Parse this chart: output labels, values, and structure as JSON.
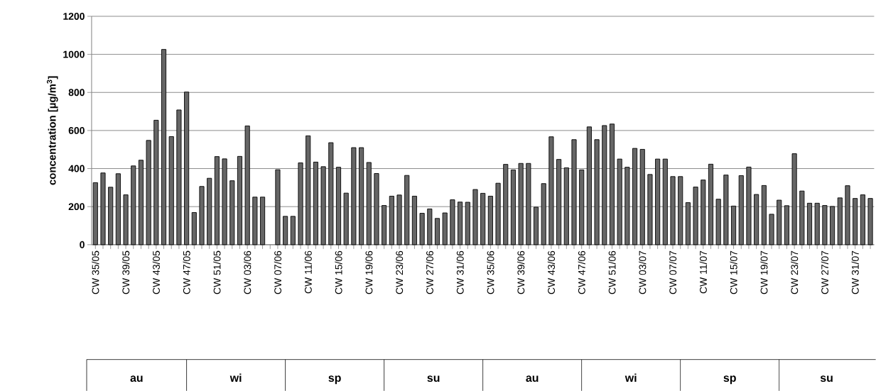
{
  "chart_data": {
    "type": "bar",
    "ylabel": "concentration [µg/m$^{3}$]",
    "categories": [
      "CW 35/05",
      null,
      null,
      null,
      "CW 39/05",
      null,
      null,
      null,
      "CW 43/05",
      null,
      null,
      null,
      "CW 47/05",
      null,
      null,
      null,
      "CW 51/05",
      null,
      null,
      null,
      "CW 03/06",
      null,
      null,
      null,
      "CW 07/06",
      null,
      null,
      null,
      "CW 11/06",
      null,
      null,
      null,
      "CW 15/06",
      null,
      null,
      null,
      "CW 19/06",
      null,
      null,
      null,
      "CW 23/06",
      null,
      null,
      null,
      "CW 27/06",
      null,
      null,
      null,
      "CW 31/06",
      null,
      null,
      null,
      "CW 35/06",
      null,
      null,
      null,
      "CW 39/06",
      null,
      null,
      null,
      "CW 43/06",
      null,
      null,
      null,
      "CW 47/06",
      null,
      null,
      null,
      "CW 51/06",
      null,
      null,
      null,
      "CW 03/07",
      null,
      null,
      null,
      "CW 07/07",
      null,
      null,
      null,
      "CW 11/07",
      null,
      null,
      null,
      "CW 15/07",
      null,
      null,
      null,
      "CW 19/07",
      null,
      null,
      null,
      "CW 23/07",
      null,
      null,
      null,
      "CW 27/07",
      null,
      null,
      null,
      "CW 31/07",
      null,
      null
    ],
    "values": [
      326,
      377,
      302,
      373,
      262,
      414,
      444,
      548,
      654,
      1026,
      568,
      708,
      802,
      169,
      306,
      349,
      463,
      451,
      336,
      464,
      624,
      250,
      250,
      null,
      394,
      149,
      149,
      430,
      572,
      434,
      410,
      536,
      407,
      271,
      510,
      510,
      432,
      374,
      206,
      255,
      261,
      364,
      255,
      165,
      188,
      138,
      167,
      236,
      224,
      223,
      290,
      270,
      255,
      323,
      422,
      393,
      427,
      427,
      197,
      321,
      567,
      448,
      404,
      552,
      393,
      619,
      552,
      626,
      634,
      450,
      407,
      506,
      501,
      369,
      450,
      450,
      358,
      358,
      221,
      303,
      340,
      423,
      239,
      366,
      203,
      363,
      408,
      264,
      311,
      160,
      234,
      205,
      478,
      282,
      218,
      218,
      206,
      201,
      246,
      310,
      243,
      262,
      243
    ],
    "color": "#666666",
    "ylim": [
      0,
      1200
    ],
    "yticks": [
      0,
      200,
      400,
      600,
      800,
      1000,
      1200
    ],
    "grid": "y",
    "annotations": [
      "au",
      "wi",
      "sp",
      "su",
      "au",
      "wi",
      "sp",
      "su"
    ]
  }
}
